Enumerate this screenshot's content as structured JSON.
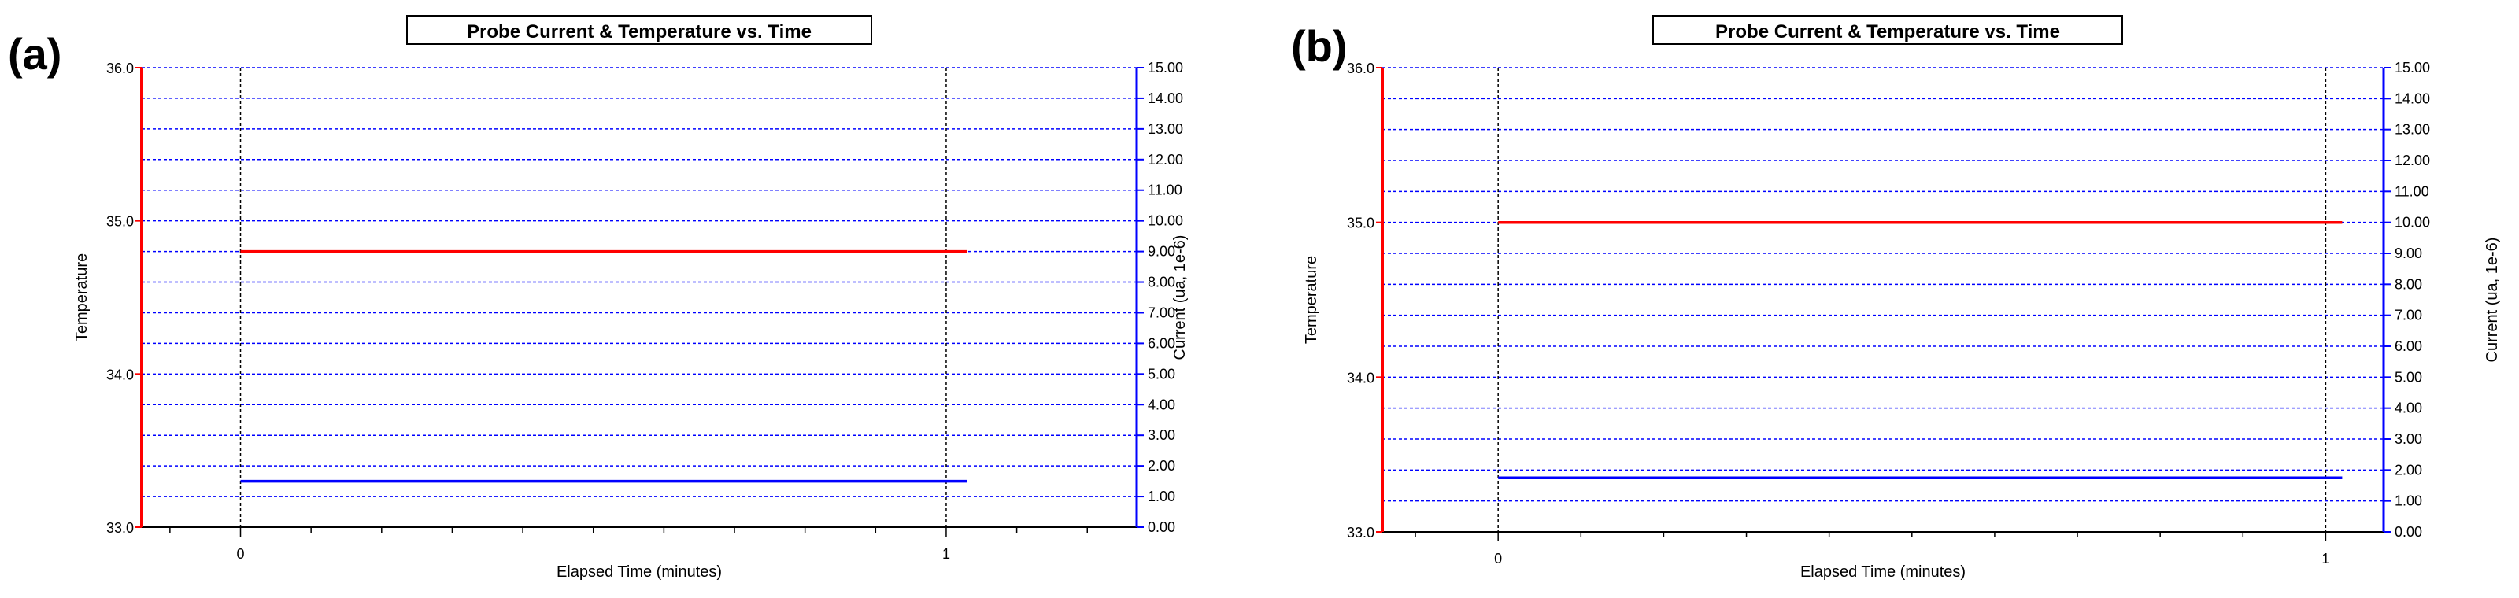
{
  "figure": {
    "panels": [
      {
        "label": "(a)"
      },
      {
        "label": "(b)"
      }
    ]
  },
  "chart_data": [
    {
      "type": "line",
      "panel_label": "(a)",
      "title": "Probe Current & Temperature vs. Time",
      "xlabel": "Elapsed Time (minutes)",
      "ylabel": "Temperature",
      "y2label": "Current  (ua, 1e-6)",
      "xlim": [
        -0.14,
        1.27
      ],
      "ylim": [
        33.0,
        36.0
      ],
      "y2lim": [
        0.0,
        15.0
      ],
      "x_ticks": [
        "0",
        "1"
      ],
      "y_ticks": [
        "33.0",
        "34.0",
        "35.0",
        "36.0"
      ],
      "y2_ticks": [
        "0.00",
        "1.00",
        "2.00",
        "3.00",
        "4.00",
        "5.00",
        "6.00",
        "7.00",
        "8.00",
        "9.00",
        "10.00",
        "11.00",
        "12.00",
        "13.00",
        "14.00",
        "15.00"
      ],
      "grid": true,
      "colors": {
        "temperature": "#ff0000",
        "current": "#0000ff",
        "x_grid": "#000000",
        "y_grid": "#0000ff"
      },
      "series": [
        {
          "axis": "left",
          "color": "#ff0000",
          "x": [
            0,
            1.03
          ],
          "y": [
            34.8,
            34.8
          ]
        },
        {
          "axis": "right",
          "color": "#0000ff",
          "x": [
            0,
            1.03
          ],
          "y": [
            1.5,
            1.5
          ]
        }
      ]
    },
    {
      "type": "line",
      "panel_label": "(b)",
      "title": "Probe Current & Temperature vs. Time",
      "xlabel": "Elapsed Time (minutes)",
      "ylabel": "Temperature",
      "y2label": "Current  (ua, 1e-6)",
      "xlim": [
        -0.14,
        1.07
      ],
      "ylim": [
        33.0,
        36.0
      ],
      "y2lim": [
        0.0,
        15.0
      ],
      "x_ticks": [
        "0",
        "1"
      ],
      "y_ticks": [
        "33.0",
        "34.0",
        "35.0",
        "36.0"
      ],
      "y2_ticks": [
        "0.00",
        "1.00",
        "2.00",
        "3.00",
        "4.00",
        "5.00",
        "6.00",
        "7.00",
        "8.00",
        "9.00",
        "10.00",
        "11.00",
        "12.00",
        "13.00",
        "14.00",
        "15.00"
      ],
      "grid": true,
      "colors": {
        "temperature": "#ff0000",
        "current": "#0000ff",
        "x_grid": "#000000",
        "y_grid": "#0000ff"
      },
      "series": [
        {
          "axis": "left",
          "color": "#ff0000",
          "x": [
            0,
            1.02
          ],
          "y": [
            35.0,
            35.0
          ]
        },
        {
          "axis": "right",
          "color": "#0000ff",
          "x": [
            0,
            1.02
          ],
          "y": [
            1.75,
            1.75
          ]
        }
      ]
    }
  ]
}
